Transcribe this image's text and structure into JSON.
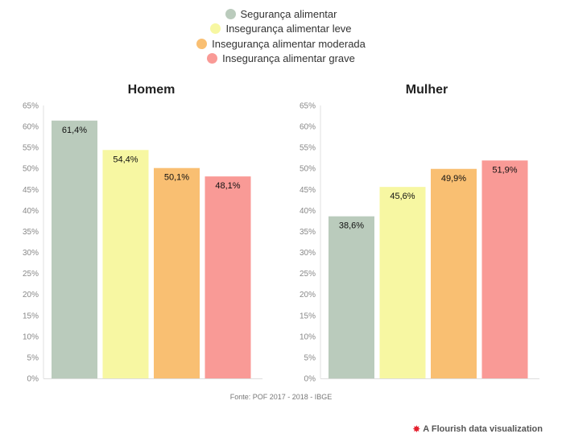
{
  "legend": [
    {
      "label": "Segurança alimentar",
      "color": "#bacbbc"
    },
    {
      "label": "Insegurança alimentar leve",
      "color": "#f7f7a2"
    },
    {
      "label": "Insegurança alimentar moderada",
      "color": "#f9bf72"
    },
    {
      "label": "Insegurança alimentar grave",
      "color": "#f99a96"
    }
  ],
  "chart_data": [
    {
      "type": "bar",
      "title": "Homem",
      "categories": [
        "Segurança alimentar",
        "Insegurança alimentar leve",
        "Insegurança alimentar moderada",
        "Insegurança alimentar grave"
      ],
      "values": [
        61.4,
        54.4,
        50.1,
        48.1
      ],
      "value_labels": [
        "61,4%",
        "54,4%",
        "50,1%",
        "48,1%"
      ],
      "ylim": [
        0,
        65
      ],
      "yticks": [
        "0%",
        "5%",
        "10%",
        "15%",
        "20%",
        "25%",
        "30%",
        "35%",
        "40%",
        "45%",
        "50%",
        "55%",
        "60%",
        "65%"
      ]
    },
    {
      "type": "bar",
      "title": "Mulher",
      "categories": [
        "Segurança alimentar",
        "Insegurança alimentar leve",
        "Insegurança alimentar moderada",
        "Insegurança alimentar grave"
      ],
      "values": [
        38.6,
        45.6,
        49.9,
        51.9
      ],
      "value_labels": [
        "38,6%",
        "45,6%",
        "49,9%",
        "51,9%"
      ],
      "ylim": [
        0,
        65
      ],
      "yticks": [
        "0%",
        "5%",
        "10%",
        "15%",
        "20%",
        "25%",
        "30%",
        "35%",
        "40%",
        "45%",
        "50%",
        "55%",
        "60%",
        "65%"
      ]
    }
  ],
  "source": "Fonte: POF 2017 - 2018 - IBGE",
  "attribution": "A Flourish data visualization"
}
